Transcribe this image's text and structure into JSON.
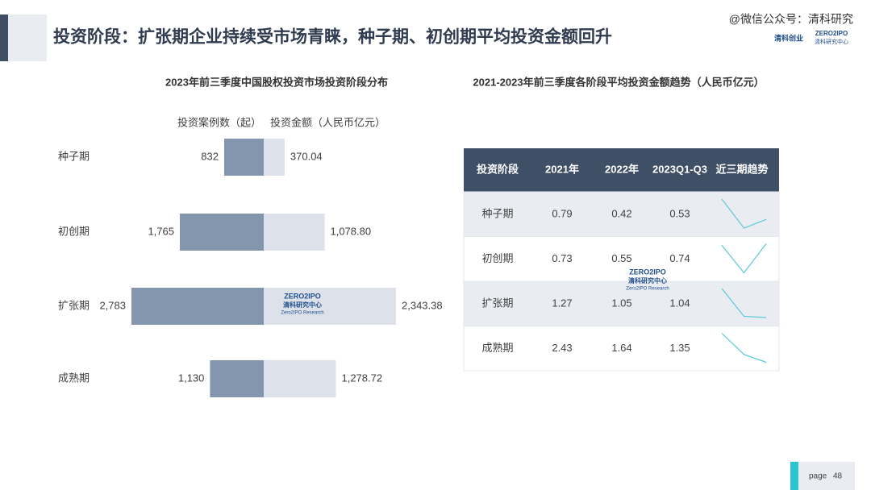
{
  "header": {
    "title": "投资阶段：扩张期企业持续受市场青睐，种子期、初创期平均投资金额回升",
    "account": "@微信公众号：清科研究",
    "brand": "清科创业"
  },
  "watermark": {
    "logo": "ZERO2IPO",
    "name": "清科研究中心",
    "sub": "Zero2IPO Research"
  },
  "chart_data": {
    "type": "butterfly",
    "title": "2023年前三季度中国股权投资市场投资阶段分布",
    "categories": [
      "种子期",
      "初创期",
      "扩张期",
      "成熟期"
    ],
    "series": [
      {
        "name": "投资案例数（起）",
        "color": "#8496ae",
        "values": [
          832,
          1765,
          2783,
          1130
        ],
        "value_labels": [
          "832",
          "1,765",
          "2,783",
          "1,130"
        ]
      },
      {
        "name": "投资金额（人民币亿元）",
        "color": "#dde2ea",
        "values": [
          370.04,
          1078.8,
          2343.38,
          1278.72
        ],
        "value_labels": [
          "370.04",
          "1,078.80",
          "2,343.38",
          "1,278.72"
        ]
      }
    ]
  },
  "table": {
    "title": "2021-2023年前三季度各阶段平均投资金额趋势（人民币亿元）",
    "trend_color": "#5bc8d8",
    "header": [
      "投资阶段",
      "2021年",
      "2022年",
      "2023Q1-Q3",
      "近三期趋势"
    ],
    "rows": [
      [
        "种子期",
        0.79,
        0.42,
        0.53
      ],
      [
        "初创期",
        0.73,
        0.55,
        0.74
      ],
      [
        "扩张期",
        1.27,
        1.05,
        1.04
      ],
      [
        "成熟期",
        2.43,
        1.64,
        1.35
      ]
    ]
  },
  "footer": {
    "label": "page",
    "number": 48
  }
}
